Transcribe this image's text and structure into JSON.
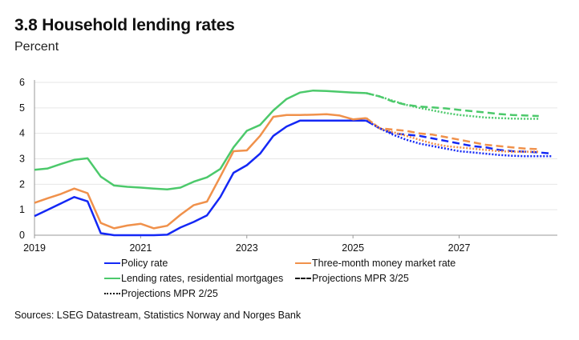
{
  "title": "3.8 Household lending rates",
  "subtitle": "Percent",
  "source": "Sources: LSEG Datastream, Statistics Norway and Norges Bank",
  "chart_data": {
    "type": "line",
    "xlim": [
      2019,
      2028.85
    ],
    "ylim": [
      0,
      6
    ],
    "xticks": [
      "2019",
      "2021",
      "2023",
      "2025",
      "2027"
    ],
    "yticks": [
      "0",
      "1",
      "2",
      "3",
      "4",
      "5",
      "6"
    ],
    "grid": true,
    "legend_position": "bottom",
    "frequency": "quarterly",
    "colors": {
      "policy": "#1428f5",
      "money_market": "#f0914b",
      "mortgage": "#4cc96b",
      "legend_black": "#111111"
    },
    "series": [
      {
        "name": "Policy rate",
        "key": "policy",
        "style": "solid",
        "start": "2019 Q1",
        "values": [
          0.75,
          1.0,
          1.25,
          1.5,
          1.33,
          0.08,
          0,
          0,
          0,
          0,
          0.02,
          0.3,
          0.52,
          0.78,
          1.5,
          2.45,
          2.75,
          3.2,
          3.9,
          4.27,
          4.5,
          4.5,
          4.5,
          4.5,
          4.5,
          4.5
        ]
      },
      {
        "name": "Three-month money market rate",
        "key": "money_market",
        "style": "solid",
        "start": "2019 Q1",
        "values": [
          1.27,
          1.45,
          1.62,
          1.83,
          1.65,
          0.48,
          0.27,
          0.38,
          0.45,
          0.27,
          0.37,
          0.8,
          1.18,
          1.32,
          2.3,
          3.3,
          3.33,
          3.9,
          4.65,
          4.72,
          4.72,
          4.73,
          4.75,
          4.7,
          4.55,
          4.6
        ]
      },
      {
        "name": "Lending rates, residential mortgages",
        "key": "mortgage",
        "style": "solid",
        "start": "2019 Q1",
        "values": [
          2.57,
          2.62,
          2.8,
          2.96,
          3.02,
          2.3,
          1.95,
          1.9,
          1.87,
          1.83,
          1.8,
          1.87,
          2.1,
          2.27,
          2.6,
          3.45,
          4.1,
          4.33,
          4.9,
          5.35,
          5.6,
          5.68,
          5.66,
          5.63,
          5.6,
          5.58
        ]
      },
      {
        "name": "Projections MPR 3/25",
        "key": "policy",
        "style": "dashed",
        "start": "2025 Q2",
        "values": [
          4.5,
          4.2,
          4.0,
          3.95,
          3.9,
          3.8,
          3.7,
          3.6,
          3.5,
          3.45,
          3.35,
          3.3,
          3.28,
          3.25,
          3.2
        ]
      },
      {
        "name": "Projections MPR 3/25",
        "key": "money_market",
        "style": "dashed",
        "start": "2025 Q2",
        "values": [
          4.6,
          4.2,
          4.15,
          4.1,
          4.0,
          3.95,
          3.85,
          3.75,
          3.65,
          3.55,
          3.5,
          3.45,
          3.4,
          3.38
        ]
      },
      {
        "name": "Projections MPR 3/25",
        "key": "mortgage",
        "style": "dashed",
        "start": "2025 Q2",
        "values": [
          5.58,
          5.45,
          5.25,
          5.12,
          5.05,
          5.02,
          4.98,
          4.92,
          4.87,
          4.82,
          4.76,
          4.72,
          4.7,
          4.68
        ]
      },
      {
        "name": "Projections MPR 2/25",
        "key": "policy",
        "style": "dotted",
        "start": "2025 Q2",
        "values": [
          4.5,
          4.2,
          3.95,
          3.75,
          3.6,
          3.5,
          3.4,
          3.3,
          3.25,
          3.2,
          3.15,
          3.12,
          3.1,
          3.1,
          3.1
        ]
      },
      {
        "name": "Projections MPR 2/25",
        "key": "money_market",
        "style": "dotted",
        "start": "2025 Q2",
        "values": [
          4.6,
          4.2,
          4.05,
          3.9,
          3.75,
          3.6,
          3.5,
          3.45,
          3.4,
          3.35,
          3.3,
          3.28,
          3.28,
          3.28
        ]
      },
      {
        "name": "Projections MPR 2/25",
        "key": "mortgage",
        "style": "dotted",
        "start": "2025 Q2",
        "values": [
          5.58,
          5.45,
          5.28,
          5.12,
          5.0,
          4.9,
          4.8,
          4.72,
          4.67,
          4.62,
          4.6,
          4.58,
          4.57,
          4.57
        ]
      }
    ],
    "legend": [
      {
        "label": "Policy rate",
        "key": "policy",
        "style": "solid"
      },
      {
        "label": "Three-month money market rate",
        "key": "money_market",
        "style": "solid"
      },
      {
        "label": "Lending rates, residential mortgages",
        "key": "mortgage",
        "style": "solid"
      },
      {
        "label": "Projections MPR 3/25",
        "key": "legend_black",
        "style": "dashed"
      },
      {
        "label": "Projections MPR 2/25",
        "key": "legend_black",
        "style": "dotted"
      }
    ]
  }
}
